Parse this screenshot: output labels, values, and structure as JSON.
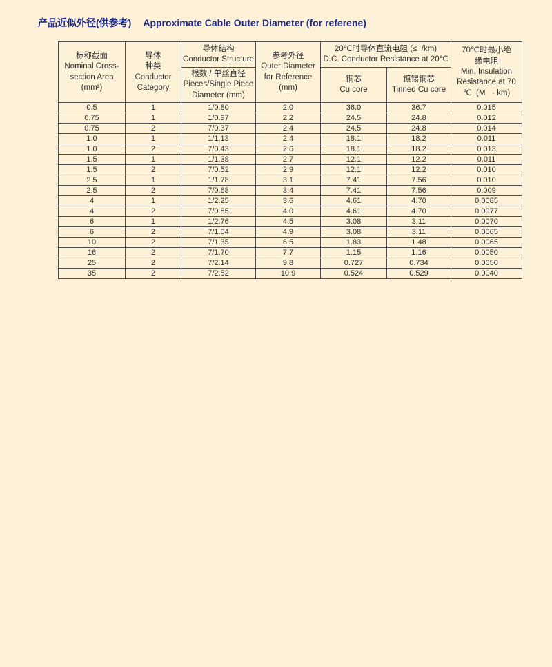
{
  "page": {
    "background": "#fdf1d8",
    "title_color": "#1f2a87",
    "title_cn": "产品近似外径(供参考)",
    "title_en": "Approximate Cable Outer Diameter (for referene)"
  },
  "table": {
    "border_color": "#4d4d4d",
    "header": {
      "nominal_area": "标称截面\nNominal Cross-\nsection Area\n(mm²)",
      "conductor_category": "导体\n种类\nConductor\nCategory",
      "conductor_structure": "导体结构\nConductor Structure",
      "pieces_diameter": "根数 / 单丝直径\nPieces/Single Piece\nDiameter (mm)",
      "outer_diameter": "参考外径\nOuter Diameter\nfor Reference\n(mm)",
      "dc_resistance": "20℃时导体直流电阻 (≤  /km)\nD.C. Conductor Resistance at 20℃",
      "cu_core": "铜芯\nCu core",
      "tinned_cu_core": "镀锡铜芯\nTinned Cu core",
      "min_insulation": "70℃时最小绝\n缘电阻\nMin. Insulation\nResistance at 70\n℃  (M   · km)"
    },
    "columns": [
      "Nominal Cross-section Area (mm²)",
      "Conductor Category",
      "Conductor Structure Pieces/Single Piece Diameter (mm)",
      "Outer Diameter for Reference (mm)",
      "D.C. Conductor Resistance at 20℃ Cu core",
      "D.C. Conductor Resistance at 20℃ Tinned Cu core",
      "Min. Insulation Resistance at 70℃ (M·km)"
    ],
    "rows": [
      [
        "0.5",
        "1",
        "1/0.80",
        "2.0",
        "36.0",
        "36.7",
        "0.015"
      ],
      [
        "0.75",
        "1",
        "1/0.97",
        "2.2",
        "24.5",
        "24.8",
        "0.012"
      ],
      [
        "0.75",
        "2",
        "7/0.37",
        "2.4",
        "24.5",
        "24.8",
        "0.014"
      ],
      [
        "1.0",
        "1",
        "1/1.13",
        "2.4",
        "18.1",
        "18.2",
        "0.011"
      ],
      [
        "1.0",
        "2",
        "7/0.43",
        "2.6",
        "18.1",
        "18.2",
        "0.013"
      ],
      [
        "1.5",
        "1",
        "1/1.38",
        "2.7",
        "12.1",
        "12.2",
        "0.011"
      ],
      [
        "1.5",
        "2",
        "7/0.52",
        "2.9",
        "12.1",
        "12.2",
        "0.010"
      ],
      [
        "2.5",
        "1",
        "1/1.78",
        "3.1",
        "7.41",
        "7.56",
        "0.010"
      ],
      [
        "2.5",
        "2",
        "7/0.68",
        "3.4",
        "7.41",
        "7.56",
        "0.009"
      ],
      [
        "4",
        "1",
        "1/2.25",
        "3.6",
        "4.61",
        "4.70",
        "0.0085"
      ],
      [
        "4",
        "2",
        "7/0.85",
        "4.0",
        "4.61",
        "4.70",
        "0.0077"
      ],
      [
        "6",
        "1",
        "1/2.76",
        "4.5",
        "3.08",
        "3.11",
        "0.0070"
      ],
      [
        "6",
        "2",
        "7/1.04",
        "4.9",
        "3.08",
        "3.11",
        "0.0065"
      ],
      [
        "10",
        "2",
        "7/1.35",
        "6.5",
        "1.83",
        "1.48",
        "0.0065"
      ],
      [
        "16",
        "2",
        "7/1.70",
        "7.7",
        "1.15",
        "1.16",
        "0.0050"
      ],
      [
        "25",
        "2",
        "7/2.14",
        "9.8",
        "0.727",
        "0.734",
        "0.0050"
      ],
      [
        "35",
        "2",
        "7/2.52",
        "10.9",
        "0.524",
        "0.529",
        "0.0040"
      ]
    ]
  }
}
